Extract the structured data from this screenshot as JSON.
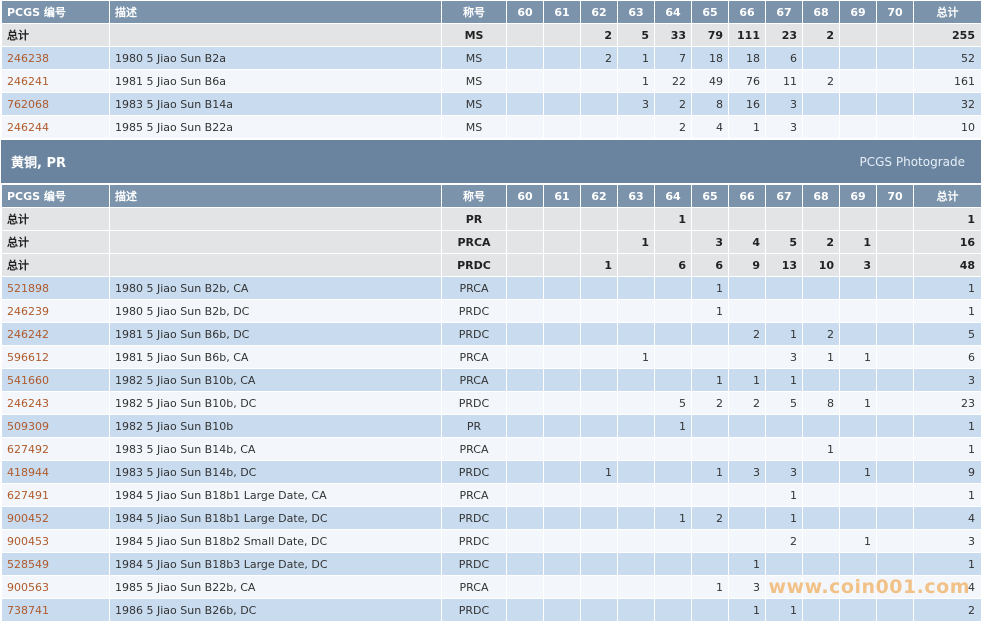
{
  "grade_headers": [
    "60",
    "61",
    "62",
    "63",
    "64",
    "65",
    "66",
    "67",
    "68",
    "69",
    "70"
  ],
  "col_id": "PCGS 编号",
  "col_desc": "描述",
  "col_des": "称号",
  "col_total": "总计",
  "total_label": "总计",
  "ms_table": {
    "totals": [
      {
        "designation": "MS",
        "grades": [
          "",
          "",
          "2",
          "5",
          "33",
          "79",
          "111",
          "23",
          "2",
          "",
          ""
        ],
        "total": "255"
      }
    ],
    "rows": [
      {
        "id": "246238",
        "desc": "1980 5 Jiao Sun B2a",
        "designation": "MS",
        "grades": [
          "",
          "",
          "2",
          "1",
          "7",
          "18",
          "18",
          "6",
          "",
          "",
          ""
        ],
        "total": "52"
      },
      {
        "id": "246241",
        "desc": "1981 5 Jiao Sun B6a",
        "designation": "MS",
        "grades": [
          "",
          "",
          "",
          "1",
          "22",
          "49",
          "76",
          "11",
          "2",
          "",
          ""
        ],
        "total": "161"
      },
      {
        "id": "762068",
        "desc": "1983 5 Jiao Sun B14a",
        "designation": "MS",
        "grades": [
          "",
          "",
          "",
          "3",
          "2",
          "8",
          "16",
          "3",
          "",
          "",
          ""
        ],
        "total": "32"
      },
      {
        "id": "246244",
        "desc": "1985 5 Jiao Sun B22a",
        "designation": "MS",
        "grades": [
          "",
          "",
          "",
          "",
          "2",
          "4",
          "1",
          "3",
          "",
          "",
          ""
        ],
        "total": "10"
      }
    ]
  },
  "section": {
    "title": "黄铜, PR",
    "link": "PCGS Photograde"
  },
  "pr_table": {
    "totals": [
      {
        "designation": "PR",
        "grades": [
          "",
          "",
          "",
          "",
          "1",
          "",
          "",
          "",
          "",
          "",
          ""
        ],
        "total": "1"
      },
      {
        "designation": "PRCA",
        "grades": [
          "",
          "",
          "",
          "1",
          "",
          "3",
          "4",
          "5",
          "2",
          "1",
          ""
        ],
        "total": "16"
      },
      {
        "designation": "PRDC",
        "grades": [
          "",
          "",
          "1",
          "",
          "6",
          "6",
          "9",
          "13",
          "10",
          "3",
          ""
        ],
        "total": "48"
      }
    ],
    "rows": [
      {
        "id": "521898",
        "desc": "1980 5 Jiao Sun B2b, CA",
        "designation": "PRCA",
        "grades": [
          "",
          "",
          "",
          "",
          "",
          "1",
          "",
          "",
          "",
          "",
          ""
        ],
        "total": "1"
      },
      {
        "id": "246239",
        "desc": "1980 5 Jiao Sun B2b, DC",
        "designation": "PRDC",
        "grades": [
          "",
          "",
          "",
          "",
          "",
          "1",
          "",
          "",
          "",
          "",
          ""
        ],
        "total": "1"
      },
      {
        "id": "246242",
        "desc": "1981 5 Jiao Sun B6b, DC",
        "designation": "PRDC",
        "grades": [
          "",
          "",
          "",
          "",
          "",
          "",
          "2",
          "1",
          "2",
          "",
          ""
        ],
        "total": "5"
      },
      {
        "id": "596612",
        "desc": "1981 5 Jiao Sun B6b, CA",
        "designation": "PRCA",
        "grades": [
          "",
          "",
          "",
          "1",
          "",
          "",
          "",
          "3",
          "1",
          "1",
          ""
        ],
        "total": "6"
      },
      {
        "id": "541660",
        "desc": "1982 5 Jiao Sun B10b, CA",
        "designation": "PRCA",
        "grades": [
          "",
          "",
          "",
          "",
          "",
          "1",
          "1",
          "1",
          "",
          "",
          ""
        ],
        "total": "3"
      },
      {
        "id": "246243",
        "desc": "1982 5 Jiao Sun B10b, DC",
        "designation": "PRDC",
        "grades": [
          "",
          "",
          "",
          "",
          "5",
          "2",
          "2",
          "5",
          "8",
          "1",
          ""
        ],
        "total": "23"
      },
      {
        "id": "509309",
        "desc": "1982 5 Jiao Sun B10b",
        "designation": "PR",
        "grades": [
          "",
          "",
          "",
          "",
          "1",
          "",
          "",
          "",
          "",
          "",
          ""
        ],
        "total": "1"
      },
      {
        "id": "627492",
        "desc": "1983 5 Jiao Sun B14b, CA",
        "designation": "PRCA",
        "grades": [
          "",
          "",
          "",
          "",
          "",
          "",
          "",
          "",
          "1",
          "",
          ""
        ],
        "total": "1"
      },
      {
        "id": "418944",
        "desc": "1983 5 Jiao Sun B14b, DC",
        "designation": "PRDC",
        "grades": [
          "",
          "",
          "1",
          "",
          "",
          "1",
          "3",
          "3",
          "",
          "1",
          ""
        ],
        "total": "9"
      },
      {
        "id": "627491",
        "desc": "1984 5 Jiao Sun B18b1 Large Date, CA",
        "designation": "PRCA",
        "grades": [
          "",
          "",
          "",
          "",
          "",
          "",
          "",
          "1",
          "",
          "",
          ""
        ],
        "total": "1"
      },
      {
        "id": "900452",
        "desc": "1984 5 Jiao Sun B18b1 Large Date, DC",
        "designation": "PRDC",
        "grades": [
          "",
          "",
          "",
          "",
          "1",
          "2",
          "",
          "1",
          "",
          "",
          ""
        ],
        "total": "4"
      },
      {
        "id": "900453",
        "desc": "1984 5 Jiao Sun B18b2 Small Date, DC",
        "designation": "PRDC",
        "grades": [
          "",
          "",
          "",
          "",
          "",
          "",
          "",
          "2",
          "",
          "1",
          ""
        ],
        "total": "3"
      },
      {
        "id": "528549",
        "desc": "1984 5 Jiao Sun B18b3 Large Date, DC",
        "designation": "PRDC",
        "grades": [
          "",
          "",
          "",
          "",
          "",
          "",
          "1",
          "",
          "",
          "",
          ""
        ],
        "total": "1"
      },
      {
        "id": "900563",
        "desc": "1985 5 Jiao Sun B22b, CA",
        "designation": "PRCA",
        "grades": [
          "",
          "",
          "",
          "",
          "",
          "1",
          "3",
          "",
          "",
          "",
          ""
        ],
        "total": "4"
      },
      {
        "id": "738741",
        "desc": "1986 5 Jiao Sun B26b, DC",
        "designation": "PRDC",
        "grades": [
          "",
          "",
          "",
          "",
          "",
          "",
          "1",
          "1",
          "",
          "",
          ""
        ],
        "total": "2"
      }
    ]
  },
  "watermark": "www.coin001.com"
}
